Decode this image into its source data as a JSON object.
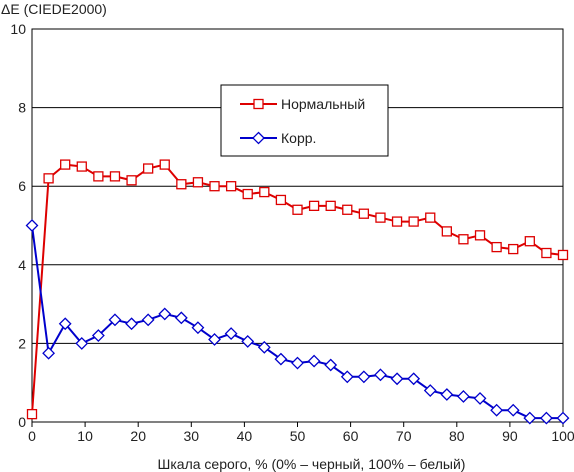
{
  "chart_data": {
    "type": "line",
    "ylabel": "ΔE (CIEDE2000)",
    "xlabel": "Шкала серого, % (0% – черный, 100% – белый)",
    "xlim": [
      0,
      100
    ],
    "ylim": [
      0,
      10
    ],
    "xticks": [
      "0",
      "10",
      "20",
      "30",
      "40",
      "50",
      "60",
      "70",
      "80",
      "90",
      "100"
    ],
    "yticks": [
      "0",
      "2",
      "4",
      "6",
      "8",
      "10"
    ],
    "grid": "horizontal",
    "legend_position": "upper-middle",
    "series": [
      {
        "name": "Нормальный",
        "color": "#dd0000",
        "marker": "square",
        "x": [
          0,
          3.125,
          6.25,
          9.375,
          12.5,
          15.625,
          18.75,
          21.875,
          25,
          28.125,
          31.25,
          34.375,
          37.5,
          40.625,
          43.75,
          46.875,
          50,
          53.125,
          56.25,
          59.375,
          62.5,
          65.625,
          68.75,
          71.875,
          75,
          78.125,
          81.25,
          84.375,
          87.5,
          90.625,
          93.75,
          96.875,
          100
        ],
        "y": [
          0.2,
          6.2,
          6.55,
          6.5,
          6.25,
          6.25,
          6.15,
          6.45,
          6.55,
          6.05,
          6.1,
          6.0,
          6.0,
          5.8,
          5.85,
          5.65,
          5.4,
          5.5,
          5.5,
          5.4,
          5.3,
          5.2,
          5.1,
          5.1,
          5.2,
          4.85,
          4.65,
          4.75,
          4.45,
          4.4,
          4.6,
          4.3,
          4.25
        ]
      },
      {
        "name": "Корр.",
        "color": "#0000cc",
        "marker": "diamond",
        "x": [
          0,
          3.125,
          6.25,
          9.375,
          12.5,
          15.625,
          18.75,
          21.875,
          25,
          28.125,
          31.25,
          34.375,
          37.5,
          40.625,
          43.75,
          46.875,
          50,
          53.125,
          56.25,
          59.375,
          62.5,
          65.625,
          68.75,
          71.875,
          75,
          78.125,
          81.25,
          84.375,
          87.5,
          90.625,
          93.75,
          96.875,
          100
        ],
        "y": [
          5.0,
          1.75,
          2.5,
          2.0,
          2.2,
          2.6,
          2.5,
          2.6,
          2.75,
          2.65,
          2.4,
          2.1,
          2.25,
          2.05,
          1.9,
          1.6,
          1.5,
          1.55,
          1.45,
          1.15,
          1.15,
          1.2,
          1.1,
          1.1,
          0.8,
          0.7,
          0.65,
          0.6,
          0.3,
          0.3,
          0.1,
          0.1,
          0.1
        ]
      }
    ]
  }
}
